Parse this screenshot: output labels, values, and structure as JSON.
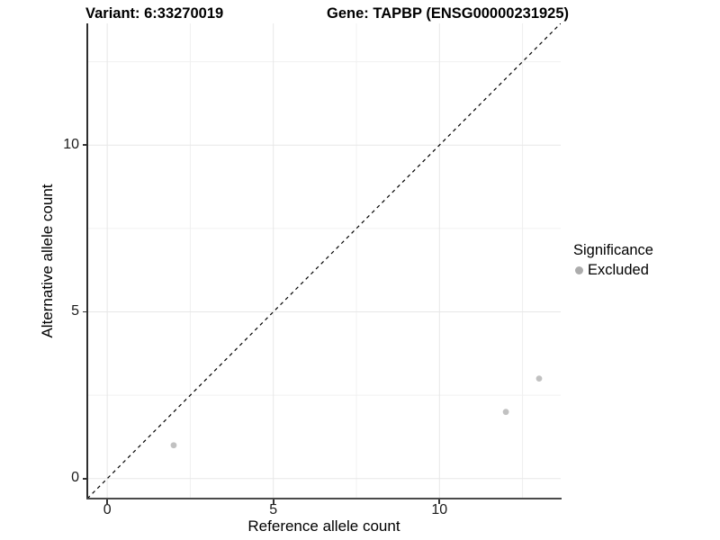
{
  "titles": {
    "left": "Variant: 6:33270019",
    "right": "Gene: TAPBP (ENSG00000231925)"
  },
  "chart_data": {
    "type": "scatter",
    "title": "Variant: 6:33270019   Gene: TAPBP (ENSG00000231925)",
    "xlabel": "Reference allele count",
    "ylabel": "Alternative allele count",
    "xlim": [
      -0.6,
      13.65
    ],
    "ylim": [
      -0.6,
      13.65
    ],
    "x_major_ticks": [
      0,
      5,
      10
    ],
    "y_major_ticks": [
      0,
      5,
      10
    ],
    "x_minor_gridlines": [
      2.5,
      7.5,
      12.5
    ],
    "y_minor_gridlines": [
      2.5,
      7.5,
      12.5
    ],
    "grid": "on",
    "identity_line": {
      "slope": 1,
      "intercept": 0,
      "style": "dashed",
      "color": "#000000"
    },
    "series": [
      {
        "name": "Excluded",
        "color": "#C1C1C1",
        "points": [
          {
            "x": 2,
            "y": 1
          },
          {
            "x": 12,
            "y": 2
          },
          {
            "x": 13,
            "y": 3
          }
        ]
      }
    ],
    "legend": {
      "title": "Significance",
      "position": "right",
      "entries": [
        {
          "label": "Excluded",
          "marker_color": "#ACACAC"
        }
      ]
    },
    "style": {
      "grid_major_color": "#E7E7E7",
      "grid_minor_color": "#F0F0F0",
      "axis_color": "#333333",
      "tick_label_color": "#1a1a1a",
      "point_radius": 3.4
    }
  }
}
